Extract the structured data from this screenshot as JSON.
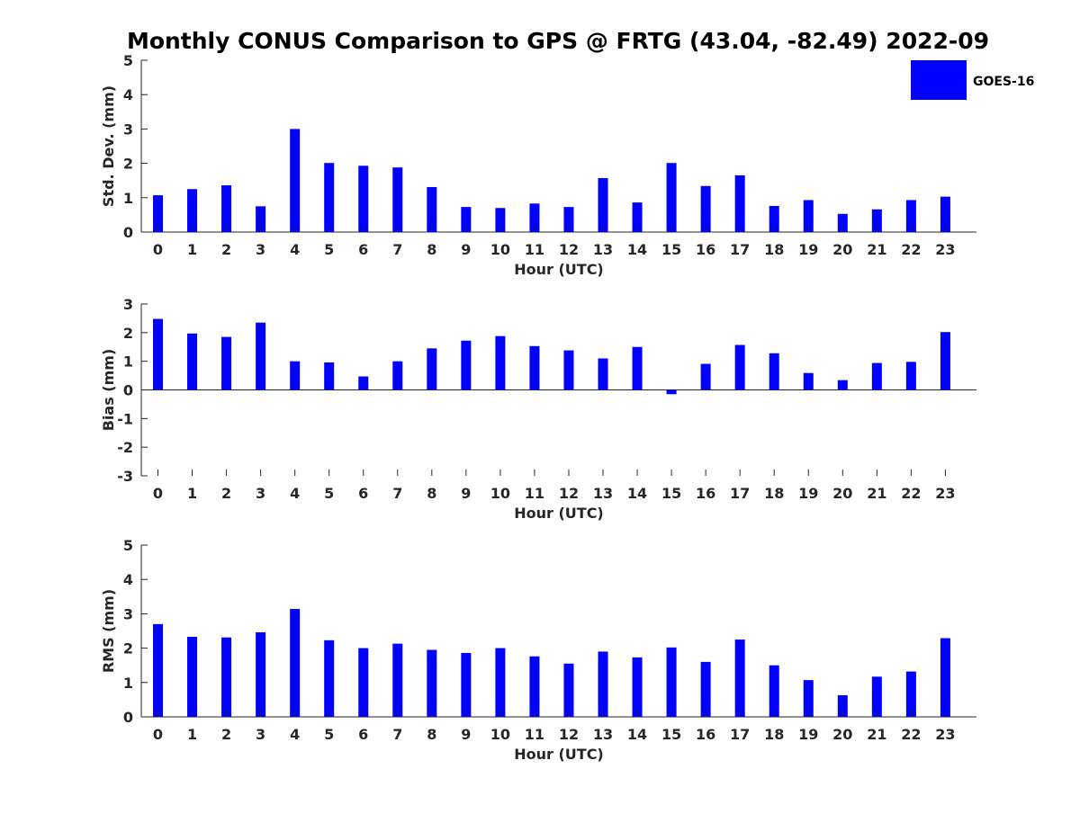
{
  "title": "Monthly CONUS Comparison to GPS @ FRTG (43.04, -82.49) 2022-09",
  "legend": {
    "label": "GOES-16",
    "color": "#0000ff"
  },
  "chart_data": [
    {
      "type": "bar",
      "name": "std-dev",
      "xlabel": "Hour (UTC)",
      "ylabel": "Std. Dev. (mm)",
      "ylim": [
        0,
        5
      ],
      "yticks": [
        0,
        1,
        2,
        3,
        4,
        5
      ],
      "categories": [
        "0",
        "1",
        "2",
        "3",
        "4",
        "5",
        "6",
        "7",
        "8",
        "9",
        "10",
        "11",
        "12",
        "13",
        "14",
        "15",
        "16",
        "17",
        "18",
        "19",
        "20",
        "21",
        "22",
        "23"
      ],
      "series": [
        {
          "name": "GOES-16",
          "values": [
            1.07,
            1.25,
            1.36,
            0.75,
            3.0,
            2.01,
            1.93,
            1.88,
            1.31,
            0.73,
            0.7,
            0.83,
            0.73,
            1.57,
            0.86,
            2.01,
            1.34,
            1.65,
            0.76,
            0.93,
            0.53,
            0.66,
            0.93,
            1.03
          ]
        }
      ],
      "legend_position": "top-right"
    },
    {
      "type": "bar",
      "name": "bias",
      "xlabel": "Hour (UTC)",
      "ylabel": "Bias (mm)",
      "ylim": [
        -3,
        3
      ],
      "yticks": [
        -3,
        -2,
        -1,
        0,
        1,
        2,
        3
      ],
      "categories": [
        "0",
        "1",
        "2",
        "3",
        "4",
        "5",
        "6",
        "7",
        "8",
        "9",
        "10",
        "11",
        "12",
        "13",
        "14",
        "15",
        "16",
        "17",
        "18",
        "19",
        "20",
        "21",
        "22",
        "23"
      ],
      "series": [
        {
          "name": "GOES-16",
          "values": [
            2.48,
            1.97,
            1.85,
            2.35,
            1.0,
            0.96,
            0.47,
            1.0,
            1.45,
            1.72,
            1.88,
            1.53,
            1.38,
            1.1,
            1.5,
            -0.15,
            0.91,
            1.57,
            1.28,
            0.59,
            0.34,
            0.94,
            0.98,
            2.02
          ]
        }
      ]
    },
    {
      "type": "bar",
      "name": "rms",
      "xlabel": "Hour (UTC)",
      "ylabel": "RMS (mm)",
      "ylim": [
        0,
        5
      ],
      "yticks": [
        0,
        1,
        2,
        3,
        4,
        5
      ],
      "categories": [
        "0",
        "1",
        "2",
        "3",
        "4",
        "5",
        "6",
        "7",
        "8",
        "9",
        "10",
        "11",
        "12",
        "13",
        "14",
        "15",
        "16",
        "17",
        "18",
        "19",
        "20",
        "21",
        "22",
        "23"
      ],
      "series": [
        {
          "name": "GOES-16",
          "values": [
            2.7,
            2.33,
            2.31,
            2.46,
            3.14,
            2.23,
            2.0,
            2.13,
            1.95,
            1.86,
            2.0,
            1.76,
            1.55,
            1.9,
            1.73,
            2.02,
            1.6,
            2.25,
            1.5,
            1.07,
            0.63,
            1.17,
            1.32,
            2.29
          ]
        }
      ]
    }
  ]
}
